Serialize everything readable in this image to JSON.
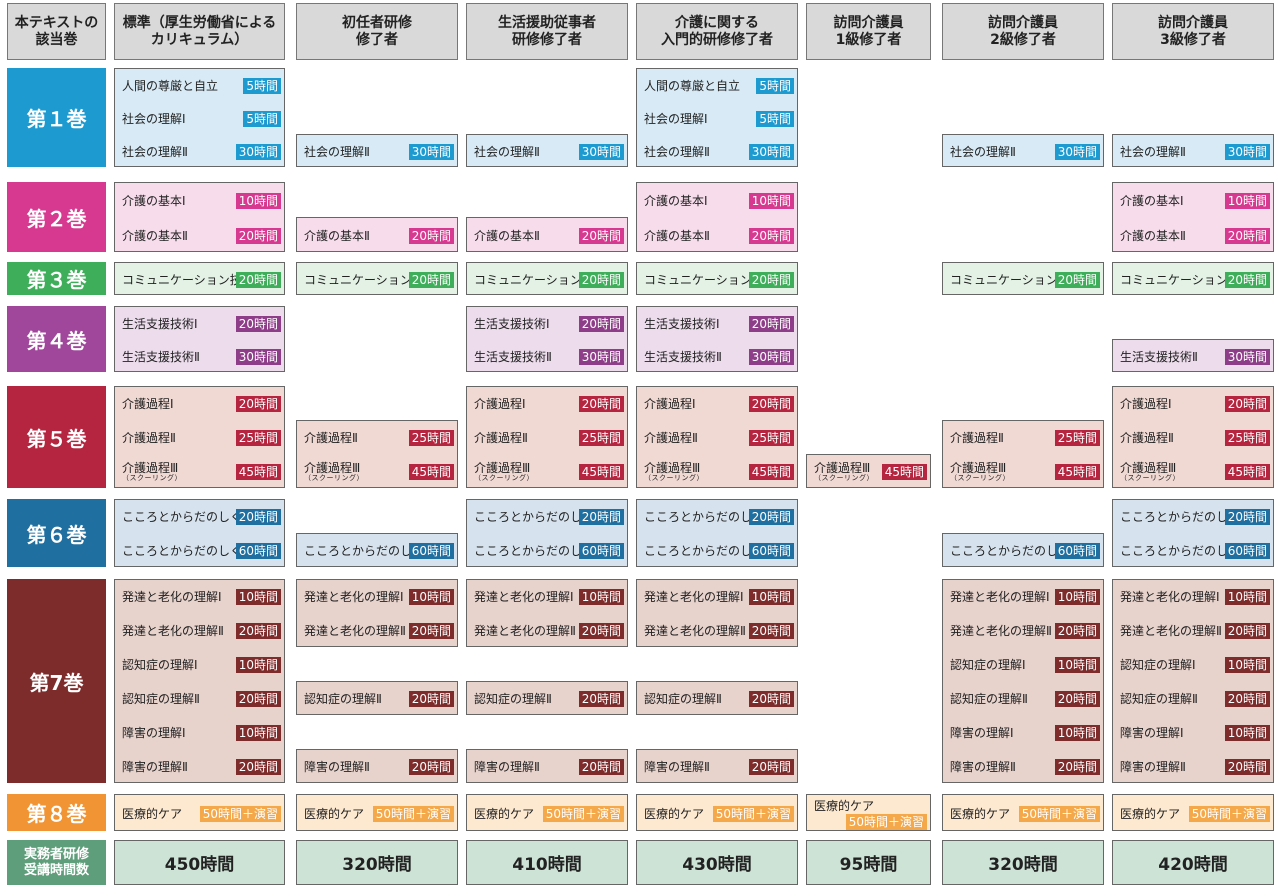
{
  "headers": [
    "本テキストの\n該当巻",
    "標準（厚生労働省による\nカリキュラム）",
    "初任者研修\n修了者",
    "生活援助従事者\n研修修了者",
    "介護に関する\n入門的研修修了者",
    "訪問介護員\n1級修了者",
    "訪問介護員\n2級修了者",
    "訪問介護員\n3級修了者"
  ],
  "volumes": [
    {
      "label": "第１巻",
      "color": "#1d9bd1",
      "bg": "#d7eaf5",
      "badge": "#1d9bd1",
      "rows": [
        {
          "name": "人間の尊厳と自立",
          "hours": "5時間",
          "cols": [
            0,
            3
          ]
        },
        {
          "name": "社会の理解Ⅰ",
          "hours": "5時間",
          "cols": [
            0,
            3
          ]
        },
        {
          "name": "社会の理解Ⅱ",
          "hours": "30時間",
          "cols": [
            0,
            1,
            2,
            3,
            5,
            6
          ]
        }
      ]
    },
    {
      "label": "第２巻",
      "color": "#d6398f",
      "bg": "#f7dceb",
      "badge": "#d6398f",
      "rows": [
        {
          "name": "介護の基本Ⅰ",
          "hours": "10時間",
          "cols": [
            0,
            3,
            6
          ]
        },
        {
          "name": "介護の基本Ⅱ",
          "hours": "20時間",
          "cols": [
            0,
            1,
            2,
            3,
            6
          ]
        }
      ]
    },
    {
      "label": "第３巻",
      "color": "#3fae5a",
      "bg": "#e3f2e5",
      "badge": "#3fae5a",
      "rows": [
        {
          "name": "コミュニケーション技術",
          "hours": "20時間",
          "cols": [
            0,
            1,
            2,
            3,
            5,
            6
          ]
        }
      ]
    },
    {
      "label": "第４巻",
      "color": "#a0469b",
      "bg": "#ecdcec",
      "badge": "#8e3e89",
      "rows": [
        {
          "name": "生活支援技術Ⅰ",
          "hours": "20時間",
          "cols": [
            0,
            2,
            3
          ]
        },
        {
          "name": "生活支援技術Ⅱ",
          "hours": "30時間",
          "cols": [
            0,
            2,
            3,
            6
          ]
        }
      ]
    },
    {
      "label": "第５巻",
      "color": "#b5253f",
      "bg": "#f0d8d3",
      "badge": "#b5253f",
      "rows": [
        {
          "name": "介護過程Ⅰ",
          "hours": "20時間",
          "cols": [
            0,
            2,
            3,
            6
          ]
        },
        {
          "name": "介護過程Ⅱ",
          "hours": "25時間",
          "cols": [
            0,
            1,
            2,
            3,
            5,
            6
          ]
        },
        {
          "name": "介護過程Ⅲ",
          "sub": "（スクーリング）",
          "hours": "45時間",
          "cols": [
            0,
            1,
            2,
            3,
            4,
            5,
            6
          ]
        }
      ]
    },
    {
      "label": "第６巻",
      "color": "#1f6fa0",
      "bg": "#d6e3ef",
      "badge": "#1f6fa0",
      "rows": [
        {
          "name": "こころとからだのしくみⅠ",
          "hours": "20時間",
          "cols": [
            0,
            2,
            3,
            6
          ]
        },
        {
          "name": "こころとからだのしくみⅡ",
          "hours": "60時間",
          "cols": [
            0,
            1,
            2,
            3,
            5,
            6
          ]
        }
      ]
    },
    {
      "label": "第7巻",
      "color": "#7e2b2b",
      "bg": "#e7d2cc",
      "badge": "#7e2b2b",
      "rows": [
        {
          "name": "発達と老化の理解Ⅰ",
          "hours": "10時間",
          "cols": [
            0,
            1,
            2,
            3,
            5,
            6
          ]
        },
        {
          "name": "発達と老化の理解Ⅱ",
          "hours": "20時間",
          "cols": [
            0,
            1,
            2,
            3,
            5,
            6
          ]
        },
        {
          "name": "認知症の理解Ⅰ",
          "hours": "10時間",
          "cols": [
            0,
            5,
            6
          ]
        },
        {
          "name": "認知症の理解Ⅱ",
          "hours": "20時間",
          "cols": [
            0,
            1,
            2,
            3,
            5,
            6
          ]
        },
        {
          "name": "障害の理解Ⅰ",
          "hours": "10時間",
          "cols": [
            0,
            5,
            6
          ]
        },
        {
          "name": "障害の理解Ⅱ",
          "hours": "20時間",
          "cols": [
            0,
            1,
            2,
            3,
            5,
            6
          ]
        }
      ]
    },
    {
      "label": "第８巻",
      "color": "#f19433",
      "bg": "#fde8d0",
      "badge": "#f5a849",
      "rows": [
        {
          "name": "医療的ケア",
          "hours": "50時間＋演習",
          "cols": [
            0,
            1,
            2,
            3,
            4,
            5,
            6
          ]
        }
      ]
    }
  ],
  "totals_label": "実務者研修\n受講時間数",
  "totals": [
    "450時間",
    "320時間",
    "410時間",
    "430時間",
    "95時間",
    "320時間",
    "420時間"
  ]
}
